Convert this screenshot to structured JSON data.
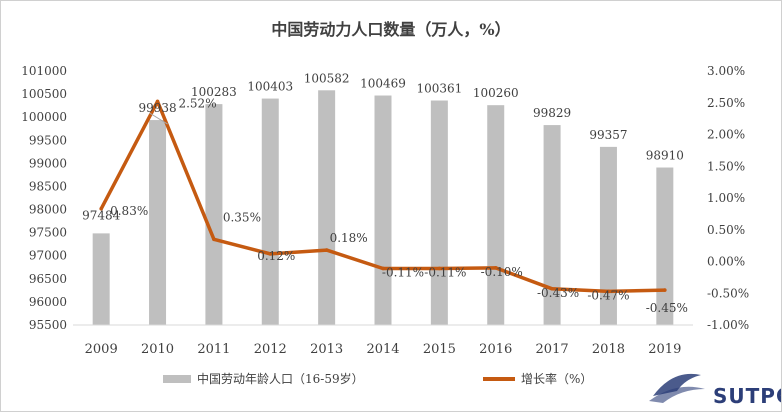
{
  "chart_data": {
    "type": "bar+line",
    "title": "中国劳动力人口数量（万人，%）",
    "categories": [
      "2009",
      "2010",
      "2011",
      "2012",
      "2013",
      "2014",
      "2015",
      "2016",
      "2017",
      "2018",
      "2019"
    ],
    "series": [
      {
        "name": "中国劳动年龄人口（16-59岁）",
        "type": "bar",
        "axis": "left",
        "color": "#bfbfbf",
        "values": [
          97484,
          99938,
          100283,
          100403,
          100582,
          100469,
          100361,
          100260,
          99829,
          99357,
          98910
        ],
        "labels": [
          "97484",
          "99938",
          "100283",
          "100403",
          "100582",
          "100469",
          "100361",
          "100260",
          "99829",
          "99357",
          "98910"
        ]
      },
      {
        "name": "增长率（%）",
        "type": "line",
        "axis": "right",
        "color": "#c55a11",
        "values": [
          0.83,
          2.52,
          0.35,
          0.12,
          0.18,
          -0.11,
          -0.11,
          -0.1,
          -0.43,
          -0.47,
          -0.45
        ],
        "labels": [
          "0.83%",
          "2.52%",
          "0.35%",
          "0.12%",
          "0.18%",
          "-0.11%",
          "-0.11%",
          "-0.10%",
          "-0.43%",
          "-0.47%",
          "-0.45%"
        ]
      }
    ],
    "y_left": {
      "min": 95500,
      "max": 101000,
      "step": 500,
      "ticks": [
        "95500",
        "96000",
        "96500",
        "97000",
        "97500",
        "98000",
        "98500",
        "99000",
        "99500",
        "100000",
        "100500",
        "101000"
      ]
    },
    "y_right": {
      "min": -1.0,
      "max": 3.0,
      "step": 0.5,
      "ticks": [
        "-1.00%",
        "-0.50%",
        "0.00%",
        "0.50%",
        "1.00%",
        "1.50%",
        "2.00%",
        "2.50%",
        "3.00%"
      ]
    },
    "grid": false,
    "legend_position": "bottom"
  },
  "watermark": {
    "text": "SUTPC",
    "color": "#2c3e78"
  }
}
